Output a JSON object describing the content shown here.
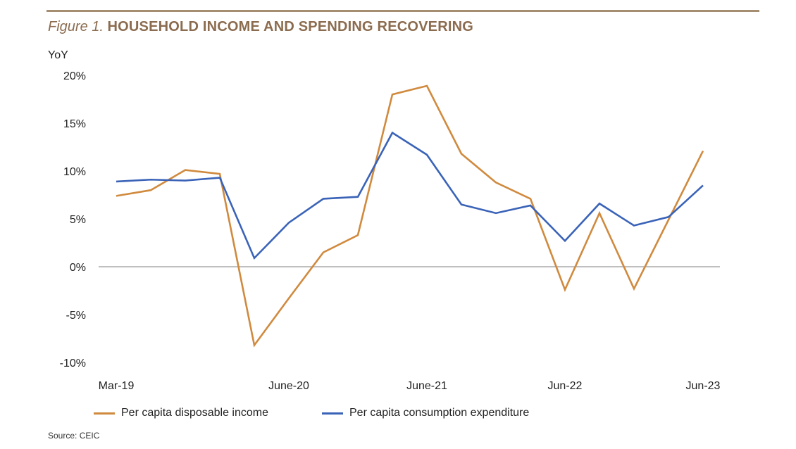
{
  "figure": {
    "label": "Figure 1.",
    "title": "HOUSEHOLD INCOME AND SPENDING RECOVERING",
    "y_unit": "YoY",
    "source": "Source: CEIC",
    "colors": {
      "rule": "#a58d72",
      "title": "#8b6c4f",
      "income": "#d08a3e",
      "expenditure": "#3a63b8",
      "zero_line": "#999999"
    }
  },
  "chart_data": {
    "type": "line",
    "title": "HOUSEHOLD INCOME AND SPENDING RECOVERING",
    "xlabel": "",
    "ylabel": "YoY",
    "ylim": [
      -10,
      20
    ],
    "yticks": [
      20,
      15,
      10,
      5,
      0,
      -5,
      -10
    ],
    "ytick_labels": [
      "20%",
      "15%",
      "10%",
      "5%",
      "0%",
      "-5%",
      "-10%"
    ],
    "grid": false,
    "zero_line": true,
    "legend_position": "bottom",
    "x": [
      "Mar-19",
      "Jun-19",
      "Sep-19",
      "Dec-19",
      "Mar-20",
      "Jun-20",
      "Sep-20",
      "Dec-20",
      "Mar-21",
      "Jun-21",
      "Sep-21",
      "Dec-21",
      "Mar-22",
      "Jun-22",
      "Sep-22",
      "Dec-22",
      "Mar-23",
      "Jun-23"
    ],
    "xtick_labels": [
      {
        "index": 0,
        "label": "Mar-19"
      },
      {
        "index": 5,
        "label": "June-20"
      },
      {
        "index": 9,
        "label": "June-21"
      },
      {
        "index": 13,
        "label": "Jun-22"
      },
      {
        "index": 17,
        "label": "Jun-23"
      }
    ],
    "series": [
      {
        "name": "Per capita disposable income",
        "color": "#d08a3e",
        "values": [
          7.4,
          8.0,
          10.1,
          9.7,
          -8.2,
          -3.3,
          1.5,
          3.3,
          18.0,
          18.9,
          11.8,
          8.8,
          7.1,
          -2.4,
          5.6,
          -2.3,
          4.9,
          12.1
        ]
      },
      {
        "name": "Per capita consumption expenditure",
        "color": "#3a63b8",
        "values": [
          8.9,
          9.1,
          9.0,
          9.3,
          0.9,
          4.6,
          7.1,
          7.3,
          14.0,
          11.7,
          6.5,
          5.6,
          6.4,
          2.7,
          6.6,
          4.3,
          5.2,
          8.5
        ]
      }
    ]
  }
}
